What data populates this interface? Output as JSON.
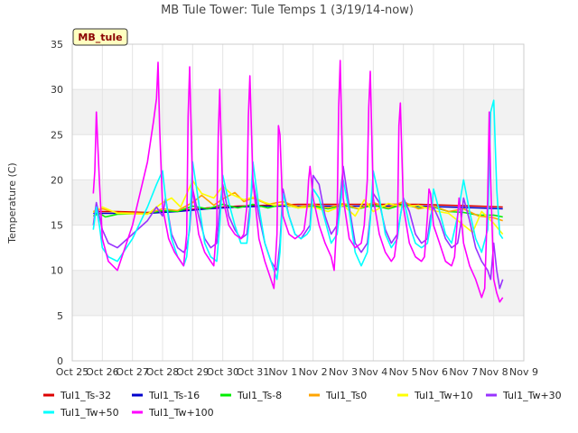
{
  "chart_data": {
    "type": "line",
    "title": "MB Tule Tower: Tule Temps 1 (3/19/14-now)",
    "ylabel": "Temperature (C)",
    "xlabel": "",
    "station_label": "MB_tule",
    "ylim": [
      0,
      35
    ],
    "yticks": [
      0,
      5,
      10,
      15,
      20,
      25,
      30,
      35
    ],
    "xlim": [
      0,
      15
    ],
    "xticks": [
      {
        "value": 0,
        "label": "Oct 25"
      },
      {
        "value": 1,
        "label": "Oct 26"
      },
      {
        "value": 2,
        "label": "Oct 27"
      },
      {
        "value": 3,
        "label": "Oct 28"
      },
      {
        "value": 4,
        "label": "Oct 29"
      },
      {
        "value": 5,
        "label": "Oct 30"
      },
      {
        "value": 6,
        "label": "Oct 31"
      },
      {
        "value": 7,
        "label": "Nov 1"
      },
      {
        "value": 8,
        "label": "Nov 2"
      },
      {
        "value": 9,
        "label": "Nov 3"
      },
      {
        "value": 10,
        "label": "Nov 4"
      },
      {
        "value": 11,
        "label": "Nov 5"
      },
      {
        "value": 12,
        "label": "Nov 6"
      },
      {
        "value": 13,
        "label": "Nov 7"
      },
      {
        "value": 14,
        "label": "Nov 8"
      },
      {
        "value": 15,
        "label": "Nov 9"
      }
    ],
    "grid_bands": true,
    "legend_position": "bottom",
    "series": [
      {
        "name": "Tul1_Ts-32",
        "color": "#dd0000",
        "x": [
          0.7,
          1.5,
          2.5,
          3.5,
          4.5,
          5.5,
          6.5,
          7.5,
          8.5,
          9.5,
          10.5,
          11.5,
          12.5,
          13.5,
          14.3
        ],
        "y": [
          16.5,
          16.5,
          16.4,
          16.6,
          16.9,
          17.1,
          17.2,
          17.3,
          17.3,
          17.3,
          17.3,
          17.3,
          17.2,
          17.1,
          17.0
        ]
      },
      {
        "name": "Tul1_Ts-16",
        "color": "#0000cc",
        "x": [
          0.7,
          1.5,
          2.5,
          3.5,
          4.5,
          5.5,
          6.5,
          7.5,
          8.5,
          9.5,
          10.5,
          11.5,
          12.5,
          13.5,
          14.3
        ],
        "y": [
          16.3,
          16.3,
          16.3,
          16.5,
          16.8,
          17.0,
          17.1,
          17.1,
          17.1,
          17.1,
          17.1,
          17.1,
          17.0,
          16.9,
          16.8
        ]
      },
      {
        "name": "Tul1_Ts-8",
        "color": "#00ee00",
        "x": [
          0.7,
          0.9,
          1.1,
          1.5,
          2.5,
          3.0,
          3.5,
          4.0,
          4.5,
          5.0,
          5.5,
          6.0,
          6.5,
          7.0,
          7.5,
          8.0,
          8.5,
          9.0,
          9.5,
          10.0,
          10.5,
          11.0,
          11.5,
          12.0,
          12.5,
          13.0,
          13.5,
          14.0,
          14.3
        ],
        "y": [
          16.0,
          16.3,
          15.9,
          16.2,
          16.3,
          16.6,
          16.5,
          17.1,
          16.8,
          17.3,
          16.9,
          17.3,
          16.9,
          17.3,
          16.9,
          17.1,
          16.8,
          17.2,
          16.8,
          17.2,
          16.8,
          17.3,
          16.9,
          17.0,
          16.5,
          16.4,
          16.1,
          16.1,
          15.9
        ]
      },
      {
        "name": "Tul1_Ts0",
        "color": "#ffa500",
        "x": [
          0.7,
          1.0,
          1.5,
          2.5,
          3.0,
          3.5,
          4.0,
          4.3,
          4.7,
          5.0,
          5.4,
          5.7,
          6.0,
          6.5,
          7.0,
          7.5,
          8.0,
          8.5,
          9.0,
          9.5,
          10.0,
          10.5,
          11.0,
          11.5,
          12.0,
          12.5,
          13.0,
          13.5,
          14.0,
          14.3
        ],
        "y": [
          16.5,
          16.8,
          16.4,
          16.3,
          16.8,
          16.6,
          17.5,
          18.3,
          17.2,
          17.9,
          18.6,
          17.6,
          18.0,
          17.3,
          17.6,
          17.0,
          17.3,
          16.9,
          17.4,
          16.8,
          17.5,
          16.9,
          17.6,
          16.8,
          17.1,
          16.5,
          16.8,
          16.0,
          15.8,
          15.5
        ]
      },
      {
        "name": "Tul1_Tw+10",
        "color": "#ffff00",
        "x": [
          0.7,
          1.0,
          1.5,
          2.5,
          3.0,
          3.3,
          3.6,
          4.0,
          4.3,
          4.7,
          5.0,
          5.3,
          5.7,
          6.0,
          6.4,
          6.7,
          7.0,
          7.5,
          8.0,
          8.5,
          9.0,
          9.4,
          9.7,
          10.0,
          10.5,
          11.0,
          11.5,
          12.0,
          12.5,
          13.0,
          13.3,
          13.6,
          14.0,
          14.3
        ],
        "y": [
          16.4,
          17.0,
          16.3,
          16.2,
          17.5,
          18.0,
          17.0,
          19.9,
          18.5,
          18.0,
          19.3,
          18.4,
          17.8,
          18.1,
          17.5,
          17.2,
          17.3,
          16.9,
          17.0,
          16.5,
          17.2,
          16.0,
          17.8,
          16.5,
          17.4,
          17.0,
          17.2,
          16.6,
          16.3,
          15.0,
          14.2,
          16.5,
          15.2,
          14.0
        ]
      },
      {
        "name": "Tul1_Tw+30",
        "color": "#9933ff",
        "x": [
          0.7,
          0.8,
          0.9,
          1.0,
          1.2,
          1.5,
          2.0,
          2.5,
          2.8,
          3.0,
          3.1,
          3.3,
          3.5,
          3.7,
          3.8,
          3.9,
          4.0,
          4.2,
          4.4,
          4.6,
          4.8,
          4.9,
          5.0,
          5.2,
          5.4,
          5.6,
          5.8,
          5.9,
          6.0,
          6.2,
          6.4,
          6.6,
          6.8,
          6.9,
          7.0,
          7.2,
          7.4,
          7.6,
          7.8,
          7.9,
          8.0,
          8.2,
          8.4,
          8.6,
          8.8,
          8.9,
          9.0,
          9.2,
          9.4,
          9.6,
          9.8,
          9.9,
          10.0,
          10.2,
          10.4,
          10.6,
          10.8,
          10.9,
          11.0,
          11.2,
          11.4,
          11.6,
          11.8,
          11.9,
          12.0,
          12.2,
          12.4,
          12.6,
          12.8,
          12.9,
          13.0,
          13.2,
          13.4,
          13.6,
          13.8,
          13.9,
          14.0,
          14.1,
          14.2,
          14.3
        ],
        "y": [
          15.0,
          17.5,
          16.0,
          14.5,
          13.0,
          12.5,
          14.0,
          15.5,
          17.0,
          16.0,
          18.0,
          14.0,
          12.5,
          12.0,
          12.5,
          14.5,
          19.0,
          16.0,
          13.5,
          12.5,
          13.0,
          17.0,
          19.5,
          16.0,
          14.5,
          13.5,
          14.0,
          17.0,
          20.0,
          16.0,
          13.0,
          11.0,
          10.0,
          13.0,
          19.0,
          16.0,
          14.0,
          13.5,
          14.5,
          15.0,
          20.5,
          19.5,
          16.0,
          14.0,
          15.0,
          18.0,
          21.5,
          17.0,
          13.0,
          12.0,
          13.0,
          16.0,
          18.5,
          17.5,
          14.5,
          13.0,
          14.0,
          16.0,
          18.0,
          16.5,
          14.0,
          13.0,
          13.5,
          16.0,
          17.0,
          15.5,
          13.5,
          12.5,
          13.0,
          15.0,
          18.0,
          15.5,
          12.5,
          11.0,
          10.0,
          9.0,
          13.0,
          10.0,
          8.0,
          9.0
        ]
      },
      {
        "name": "Tul1_Tw+50",
        "color": "#00ffff",
        "x": [
          0.7,
          0.8,
          0.9,
          1.0,
          1.2,
          1.5,
          2.0,
          2.5,
          2.8,
          3.0,
          3.1,
          3.3,
          3.5,
          3.7,
          3.8,
          3.9,
          4.0,
          4.2,
          4.4,
          4.6,
          4.8,
          4.9,
          5.0,
          5.2,
          5.4,
          5.6,
          5.8,
          5.9,
          6.0,
          6.2,
          6.4,
          6.6,
          6.8,
          6.9,
          7.0,
          7.2,
          7.4,
          7.6,
          7.8,
          7.9,
          8.0,
          8.2,
          8.4,
          8.6,
          8.8,
          8.9,
          9.0,
          9.2,
          9.4,
          9.6,
          9.8,
          9.9,
          10.0,
          10.2,
          10.4,
          10.6,
          10.8,
          10.9,
          11.0,
          11.2,
          11.4,
          11.6,
          11.8,
          11.9,
          12.0,
          12.2,
          12.4,
          12.6,
          12.8,
          12.9,
          13.0,
          13.2,
          13.4,
          13.6,
          13.8,
          13.9,
          14.0,
          14.1,
          14.2,
          14.3
        ],
        "y": [
          14.5,
          17.0,
          15.0,
          12.5,
          11.5,
          11.0,
          13.5,
          17.0,
          19.5,
          21.0,
          18.0,
          13.5,
          11.5,
          10.5,
          11.5,
          15.0,
          22.0,
          17.5,
          13.0,
          11.5,
          11.0,
          15.0,
          20.5,
          17.5,
          15.0,
          13.0,
          13.0,
          16.0,
          22.0,
          17.0,
          13.0,
          11.0,
          9.0,
          12.0,
          18.5,
          16.0,
          14.0,
          13.5,
          14.0,
          14.5,
          19.0,
          18.0,
          15.5,
          13.0,
          14.0,
          17.0,
          20.0,
          16.5,
          12.0,
          10.5,
          12.0,
          15.5,
          21.0,
          18.0,
          14.0,
          12.5,
          13.5,
          16.0,
          18.0,
          15.0,
          13.0,
          12.5,
          13.0,
          15.0,
          19.0,
          16.5,
          14.0,
          13.0,
          16.0,
          18.0,
          20.0,
          16.5,
          13.5,
          12.0,
          14.5,
          27.5,
          28.8,
          19.0,
          14.0,
          13.5
        ]
      },
      {
        "name": "Tul1_Tw+100",
        "color": "#ff00ff",
        "x": [
          0.7,
          0.75,
          0.8,
          0.9,
          1.0,
          1.2,
          1.5,
          2.0,
          2.5,
          2.7,
          2.8,
          2.85,
          2.9,
          3.0,
          3.2,
          3.4,
          3.6,
          3.7,
          3.8,
          3.85,
          3.9,
          4.0,
          4.2,
          4.4,
          4.6,
          4.7,
          4.8,
          4.85,
          4.9,
          5.0,
          5.2,
          5.4,
          5.6,
          5.7,
          5.8,
          5.85,
          5.9,
          6.0,
          6.2,
          6.4,
          6.6,
          6.7,
          6.8,
          6.85,
          6.9,
          7.0,
          7.2,
          7.4,
          7.6,
          7.7,
          7.8,
          7.85,
          7.9,
          8.0,
          8.2,
          8.4,
          8.6,
          8.7,
          8.8,
          8.85,
          8.9,
          9.0,
          9.2,
          9.4,
          9.6,
          9.7,
          9.8,
          9.85,
          9.9,
          10.0,
          10.2,
          10.4,
          10.6,
          10.7,
          10.8,
          10.85,
          10.9,
          11.0,
          11.2,
          11.4,
          11.6,
          11.7,
          11.8,
          11.85,
          11.9,
          12.0,
          12.2,
          12.4,
          12.6,
          12.7,
          12.8,
          12.85,
          12.9,
          13.0,
          13.2,
          13.4,
          13.6,
          13.7,
          13.8,
          13.85,
          13.9,
          14.0,
          14.1,
          14.2,
          14.3
        ],
        "y": [
          18.5,
          21.0,
          27.5,
          20.0,
          13.5,
          11.0,
          10.0,
          15.0,
          22.0,
          26.5,
          29.0,
          33.0,
          26.0,
          17.0,
          13.5,
          12.0,
          11.0,
          10.5,
          14.0,
          27.0,
          32.5,
          19.0,
          14.0,
          12.0,
          11.0,
          10.5,
          15.0,
          25.0,
          30.0,
          18.0,
          15.0,
          14.0,
          13.5,
          14.0,
          17.0,
          27.0,
          31.5,
          20.0,
          13.5,
          11.0,
          9.0,
          8.0,
          14.0,
          26.0,
          25.0,
          16.0,
          14.0,
          13.5,
          14.0,
          14.5,
          17.0,
          20.0,
          21.5,
          18.0,
          15.0,
          13.0,
          11.5,
          10.0,
          16.0,
          28.0,
          33.2,
          18.0,
          13.5,
          12.5,
          13.0,
          15.0,
          20.0,
          28.0,
          32.0,
          18.0,
          14.0,
          12.0,
          11.0,
          11.5,
          14.0,
          26.0,
          28.5,
          17.0,
          13.0,
          11.5,
          11.0,
          11.5,
          16.0,
          19.0,
          18.5,
          15.0,
          13.0,
          11.0,
          10.5,
          11.5,
          16.0,
          18.0,
          16.5,
          13.0,
          10.5,
          9.0,
          7.0,
          8.0,
          18.0,
          27.5,
          20.0,
          9.0,
          7.5,
          6.5,
          7.0
        ]
      }
    ]
  }
}
